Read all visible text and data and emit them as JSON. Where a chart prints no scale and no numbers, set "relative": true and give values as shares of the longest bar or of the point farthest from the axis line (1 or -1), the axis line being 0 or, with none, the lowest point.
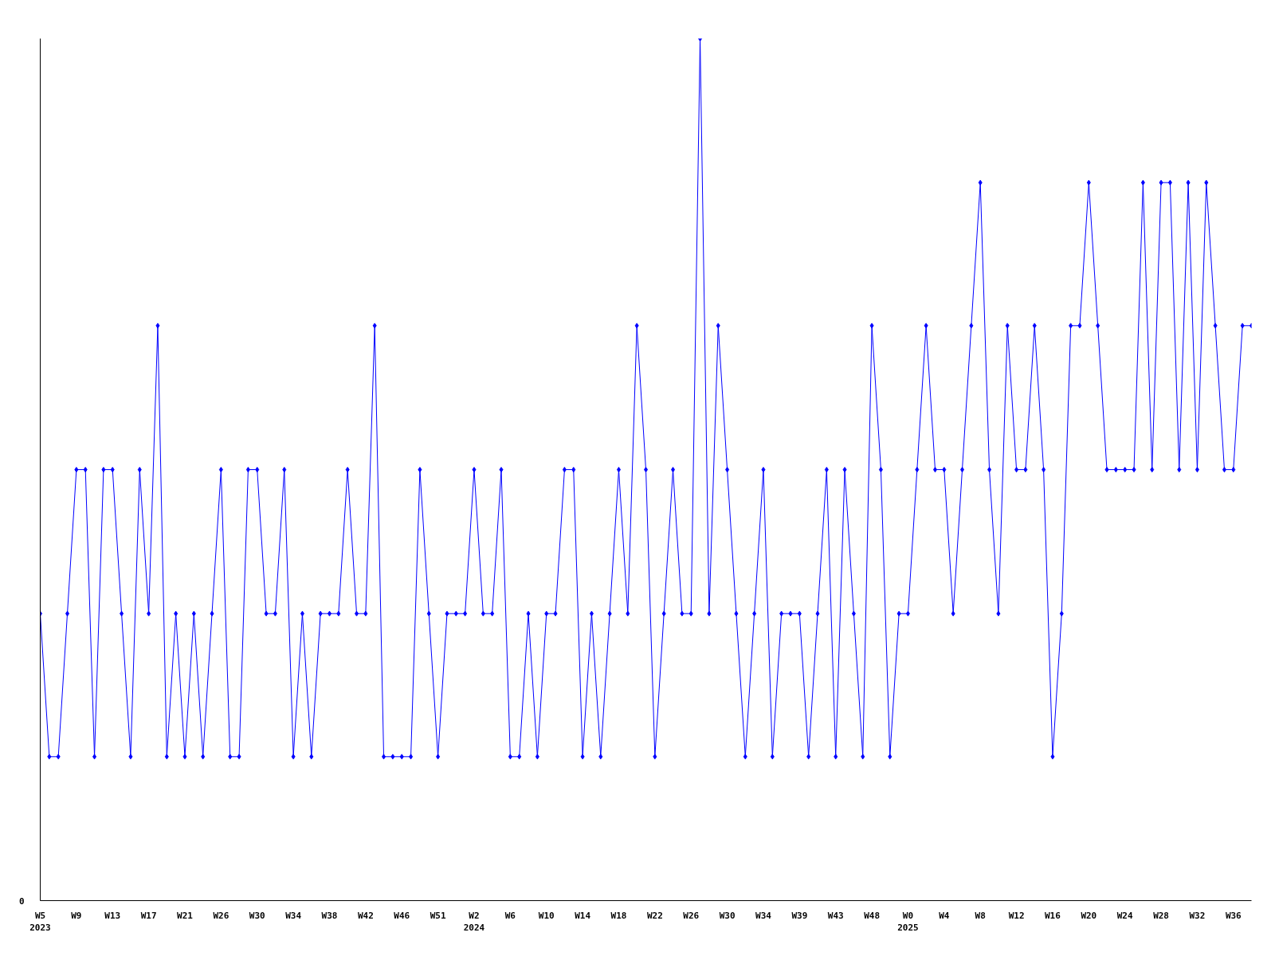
{
  "chart_data": {
    "type": "line",
    "relative": true,
    "marker": "diamond",
    "grid": false,
    "annotations": [
      "0"
    ],
    "categories": [
      "W5\n2023",
      null,
      null,
      null,
      "W9",
      null,
      null,
      null,
      "W13",
      null,
      null,
      null,
      "W17",
      null,
      null,
      null,
      "W21",
      null,
      null,
      null,
      "W26",
      null,
      null,
      null,
      "W30",
      null,
      null,
      null,
      "W34",
      null,
      null,
      null,
      "W38",
      null,
      null,
      null,
      "W42",
      null,
      null,
      null,
      "W46",
      null,
      null,
      null,
      "W51",
      null,
      null,
      null,
      "W2\n2024",
      null,
      null,
      null,
      "W6",
      null,
      null,
      null,
      "W10",
      null,
      null,
      null,
      "W14",
      null,
      null,
      null,
      "W18",
      null,
      null,
      null,
      "W22",
      null,
      null,
      null,
      "W26",
      null,
      null,
      null,
      "W30",
      null,
      null,
      null,
      "W34",
      null,
      null,
      null,
      "W39",
      null,
      null,
      null,
      "W43",
      null,
      null,
      null,
      "W48",
      null,
      null,
      null,
      "W0\n2025",
      null,
      null,
      null,
      "W4",
      null,
      null,
      null,
      "W8",
      null,
      null,
      null,
      "W12",
      null,
      null,
      null,
      "W16",
      null,
      null,
      null,
      "W20",
      null,
      null,
      null,
      "W24",
      null,
      null,
      null,
      "W28",
      null,
      null,
      null,
      "W32",
      null,
      null,
      null,
      "W36",
      null,
      null
    ],
    "series": [
      {
        "color": "#0000ff",
        "values": [
          0.333,
          0.167,
          0.167,
          0.333,
          0.5,
          0.5,
          0.167,
          0.5,
          0.5,
          0.333,
          0.167,
          0.5,
          0.333,
          0.667,
          0.167,
          0.333,
          0.167,
          0.333,
          0.167,
          0.333,
          0.5,
          0.167,
          0.167,
          0.5,
          0.5,
          0.333,
          0.333,
          0.5,
          0.167,
          0.333,
          0.167,
          0.333,
          0.333,
          0.333,
          0.5,
          0.333,
          0.333,
          0.667,
          0.167,
          0.167,
          0.167,
          0.167,
          0.5,
          0.333,
          0.167,
          0.333,
          0.333,
          0.333,
          0.5,
          0.333,
          0.333,
          0.5,
          0.167,
          0.167,
          0.333,
          0.167,
          0.333,
          0.333,
          0.5,
          0.5,
          0.167,
          0.333,
          0.167,
          0.333,
          0.5,
          0.333,
          0.667,
          0.5,
          0.167,
          0.333,
          0.5,
          0.333,
          0.333,
          1,
          0.333,
          0.667,
          0.5,
          0.333,
          0.167,
          0.333,
          0.5,
          0.167,
          0.333,
          0.333,
          0.333,
          0.167,
          0.333,
          0.5,
          0.167,
          0.5,
          0.333,
          0.167,
          0.667,
          0.5,
          0.167,
          0.333,
          0.333,
          0.5,
          0.667,
          0.5,
          0.5,
          0.333,
          0.5,
          0.667,
          0.833,
          0.5,
          0.333,
          0.667,
          0.5,
          0.5,
          0.667,
          0.5,
          0.167,
          0.333,
          0.667,
          0.667,
          0.833,
          0.667,
          0.5,
          0.5,
          0.5,
          0.5,
          0.833,
          0.5,
          0.833,
          0.833,
          0.5,
          0.833,
          0.5,
          0.833,
          0.667,
          0.5,
          0.5,
          0.667,
          0.667
        ]
      }
    ]
  }
}
